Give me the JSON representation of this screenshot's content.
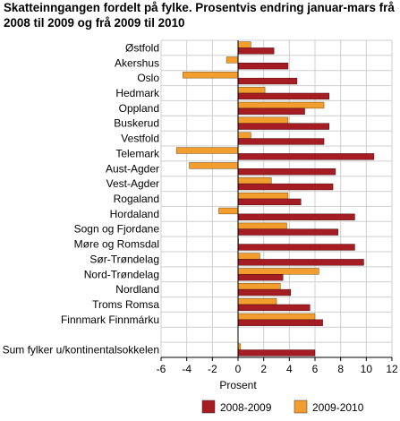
{
  "chart_data": {
    "type": "bar",
    "orientation": "horizontal",
    "title": "Skatteinngangen fordelt på fylke. Prosentvis endring januar-mars frå 2008 til 2009 og frå 2009 til 2010",
    "xlabel": "Prosent",
    "ylabel": "",
    "xlim": [
      -6,
      12
    ],
    "xticks": [
      -6,
      -4,
      -2,
      0,
      2,
      4,
      6,
      8,
      10,
      12
    ],
    "grid": true,
    "legend_position": "bottom",
    "categories": [
      "Østfold",
      "Akershus",
      "Oslo",
      "Hedmark",
      "Oppland",
      "Buskerud",
      "Vestfold",
      "Telemark",
      "Aust-Agder",
      "Vest-Agder",
      "Rogaland",
      "Hordaland",
      "Sogn og Fjordane",
      "Møre og Romsdal",
      "Sør-Trøndelag",
      "Nord-Trøndelag",
      "Nordland",
      "Troms Romsa",
      "Finnmark Finnmárku",
      "",
      "Sum fylker u/kontinentalsokkelen"
    ],
    "series": [
      {
        "name": "2008-2009",
        "color": "#a51d23",
        "values": [
          2.8,
          3.9,
          4.6,
          7.1,
          5.2,
          7.1,
          6.7,
          10.6,
          7.6,
          7.4,
          4.9,
          9.1,
          7.8,
          9.1,
          9.8,
          3.5,
          4.1,
          5.6,
          6.6,
          null,
          6.0
        ]
      },
      {
        "name": "2009-2010",
        "color": "#f39d2f",
        "values": [
          1.0,
          -0.9,
          -4.3,
          2.1,
          6.7,
          3.9,
          1.0,
          -4.8,
          -3.8,
          2.6,
          3.9,
          -1.5,
          3.8,
          0.0,
          1.7,
          6.3,
          3.3,
          3.0,
          6.0,
          null,
          0.2
        ]
      }
    ]
  }
}
